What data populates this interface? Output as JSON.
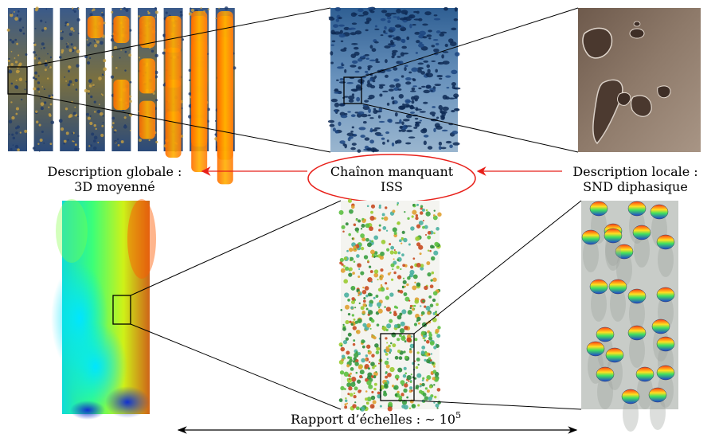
{
  "labels": {
    "global_line1": "Description globale :",
    "global_line2": "3D moyenné",
    "missing_line1": "Chaînon manquant",
    "missing_line2": "ISS",
    "local_line1": "Description locale :",
    "local_line2": "SND diphasique",
    "ratio_text": "Rapport d’échelles : ∼ 10",
    "ratio_exp": "5"
  },
  "colors": {
    "arrow_red": "#e8201a",
    "ellipse_red": "#e8201a",
    "line": "#000000"
  }
}
